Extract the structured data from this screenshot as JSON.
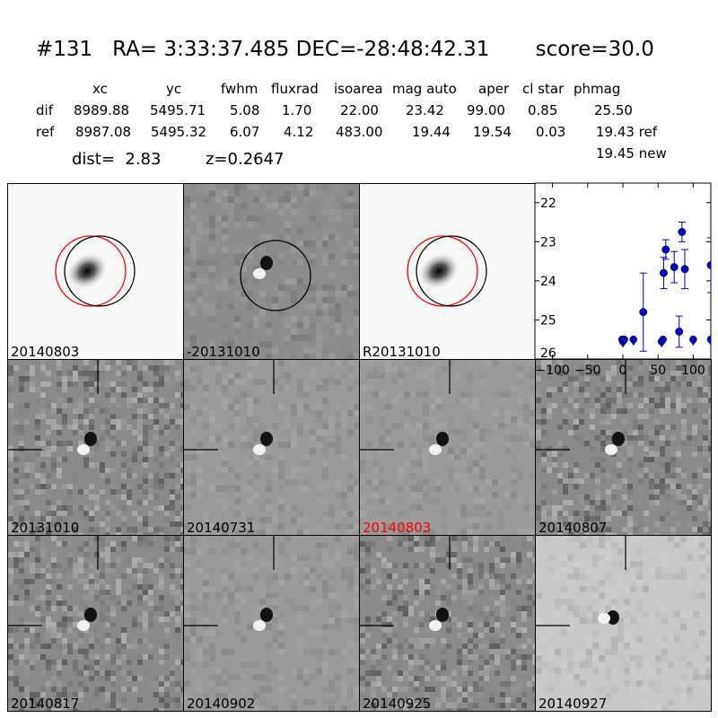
{
  "header": {
    "title": "#131   RA= 3:33:37.485 DEC=-28:48:42.31       score=30.0",
    "columns": [
      "xc",
      "yc",
      "fwhm",
      "fluxrad",
      "isoarea",
      "mag auto",
      "aper",
      "cl star",
      "phmag"
    ],
    "rows": [
      {
        "name": "dif",
        "values": [
          "8989.88",
          "5495.71",
          "5.08",
          "1.70",
          "22.00",
          "23.42",
          "99.00",
          "0.85",
          "25.50"
        ]
      },
      {
        "name": "ref",
        "values": [
          "8987.08",
          "5495.32",
          "6.07",
          "4.12",
          "483.00",
          "19.44",
          "19.54",
          "0.03",
          "19.43 ref"
        ]
      }
    ],
    "extra_phmag": "19.45 new",
    "dist": "dist=  2.83",
    "z": "z=0.2647"
  },
  "stamps": [
    {
      "label": "20140803",
      "type": "galaxy",
      "label_color": "#000000"
    },
    {
      "label": "-20131010",
      "type": "diff-circle",
      "label_color": "#000000"
    },
    {
      "label": "R20131010",
      "type": "galaxy",
      "label_color": "#000000"
    },
    {
      "label": "20131010",
      "type": "noisy",
      "label_color": "#000000"
    },
    {
      "label": "20140731",
      "type": "faint",
      "label_color": "#000000"
    },
    {
      "label": "20140803",
      "type": "faint",
      "label_color": "#ff0000"
    },
    {
      "label": "20140807",
      "type": "noisy",
      "label_color": "#000000"
    },
    {
      "label": "20140817",
      "type": "noisy",
      "label_color": "#000000"
    },
    {
      "label": "20140902",
      "type": "faint",
      "label_color": "#000000"
    },
    {
      "label": "20140925",
      "type": "noisy",
      "label_color": "#000000"
    },
    {
      "label": "20140927",
      "type": "light",
      "label_color": "#000000"
    }
  ],
  "chart_data": {
    "type": "scatter",
    "title": "",
    "xlabel": "",
    "ylabel": "",
    "xlim": [
      -125,
      125
    ],
    "ylim": [
      26,
      21.5
    ],
    "y_inverted": true,
    "x_ticks": [
      -100,
      -50,
      0,
      50,
      100
    ],
    "x_tick_labels": [
      "−100",
      "−50",
      "0",
      "50",
      "100"
    ],
    "y_ticks": [
      22,
      23,
      24,
      25,
      26
    ],
    "color": "#0000cc",
    "points": [
      {
        "x": -1,
        "y": 25.5,
        "limit": true
      },
      {
        "x": 0,
        "y": 25.55,
        "limit": true
      },
      {
        "x": 2,
        "y": 25.5,
        "limit": true
      },
      {
        "x": 15,
        "y": 25.5,
        "limit": true
      },
      {
        "x": 55,
        "y": 25.55,
        "limit": true
      },
      {
        "x": 57,
        "y": 25.5,
        "limit": true
      },
      {
        "x": 100,
        "y": 25.5,
        "limit": true
      },
      {
        "x": 125,
        "y": 25.5,
        "limit": true
      },
      {
        "x": 29,
        "y": 24.8,
        "err": 1.0
      },
      {
        "x": 58,
        "y": 23.8,
        "err": 0.4
      },
      {
        "x": 61,
        "y": 23.2,
        "err": 0.25
      },
      {
        "x": 73,
        "y": 23.65,
        "err": 0.4
      },
      {
        "x": 80,
        "y": 25.3,
        "err": 0.4
      },
      {
        "x": 84,
        "y": 22.75,
        "err": 0.25
      },
      {
        "x": 88,
        "y": 23.7,
        "err": 0.5
      },
      {
        "x": 125,
        "y": 23.6,
        "err": 0.7
      }
    ]
  }
}
